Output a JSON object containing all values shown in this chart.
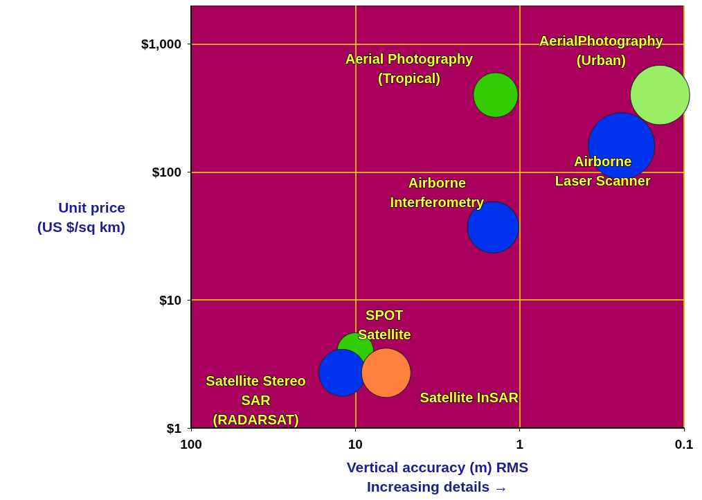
{
  "chart_data": {
    "type": "bubble",
    "xlabel": "Vertical accuracy (m) RMS\nIncreasing details →",
    "ylabel": "Unit price\n(US $/sq km)",
    "log": "xy",
    "xlim": [
      100,
      0.1
    ],
    "xticks": [
      100,
      10,
      1,
      0.1
    ],
    "ylim": [
      1,
      2000
    ],
    "yticks": [
      {
        "value": 1,
        "label": "$1"
      },
      {
        "value": 10,
        "label": "$10"
      },
      {
        "value": 100,
        "label": "$100"
      },
      {
        "value": 1000,
        "label": "$1,000"
      }
    ],
    "grid": true,
    "legend": false,
    "series": [
      {
        "name": "Aerial Photography\n(Tropical)",
        "color": "#33cc00",
        "x": [
          1.4
        ],
        "values": [
          400
        ],
        "sizes": [
          0.45
        ]
      },
      {
        "name": "AerialPhotography\n(Urban)",
        "color": "#99ee66",
        "x": [
          0.14
        ],
        "values": [
          400
        ],
        "sizes": [
          0.8
        ]
      },
      {
        "name": "Airborne\nLaser Scanner",
        "color": "#0033ee",
        "x": [
          0.24
        ],
        "values": [
          160
        ],
        "sizes": [
          1
        ]
      },
      {
        "name": "Airborne\nInterferometry",
        "color": "#0033ee",
        "x": [
          1.45
        ],
        "values": [
          37
        ],
        "sizes": [
          0.6
        ]
      },
      {
        "name": "SPOT\nSatellite",
        "color": "#33cc00",
        "x": [
          10
        ],
        "values": [
          4
        ],
        "sizes": [
          0.3
        ]
      },
      {
        "name": "Satellite Stereo\nSAR\n(RADARSAT)",
        "color": "#0033ee",
        "x": [
          12
        ],
        "values": [
          2.7
        ],
        "sizes": [
          0.5
        ]
      },
      {
        "name": "Satellite InSAR",
        "color": "#ff7f3f",
        "x": [
          6.5
        ],
        "values": [
          2.7
        ],
        "sizes": [
          0.55
        ]
      }
    ]
  }
}
